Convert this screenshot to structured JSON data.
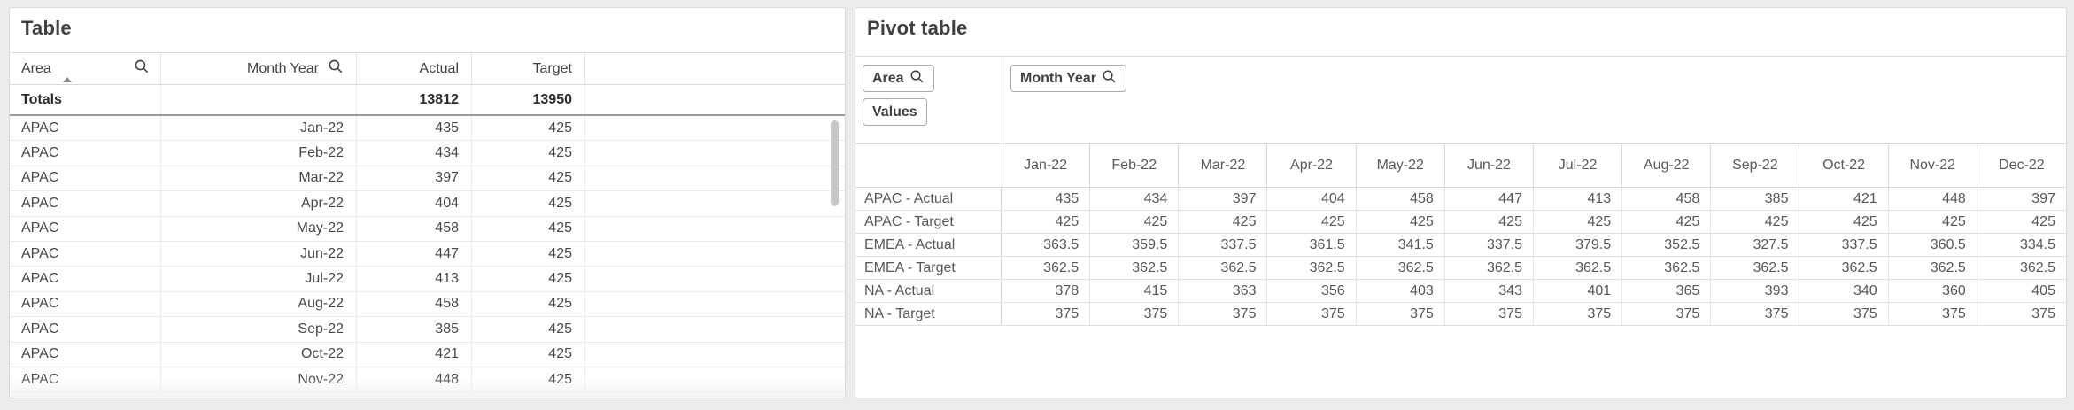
{
  "colors": {
    "page_bg": "#ececed",
    "panel_border": "#d8d8d8",
    "grid_border": "#e0e0e0",
    "totals_rule": "#9b9b9b",
    "scrollbar_thumb": "#c6c6c6",
    "text": "#4d4d4d"
  },
  "icons": {
    "search": "magnifier",
    "sort_ascending": "triangle-up"
  },
  "left_table": {
    "title": "Table",
    "columns": [
      "Area",
      "Month Year",
      "Actual",
      "Target"
    ],
    "totals_label": "Totals",
    "totals": {
      "actual": "13812",
      "target": "13950"
    },
    "rows": [
      {
        "area": "APAC",
        "month": "Jan-22",
        "actual": "435",
        "target": "425"
      },
      {
        "area": "APAC",
        "month": "Feb-22",
        "actual": "434",
        "target": "425"
      },
      {
        "area": "APAC",
        "month": "Mar-22",
        "actual": "397",
        "target": "425"
      },
      {
        "area": "APAC",
        "month": "Apr-22",
        "actual": "404",
        "target": "425"
      },
      {
        "area": "APAC",
        "month": "May-22",
        "actual": "458",
        "target": "425"
      },
      {
        "area": "APAC",
        "month": "Jun-22",
        "actual": "447",
        "target": "425"
      },
      {
        "area": "APAC",
        "month": "Jul-22",
        "actual": "413",
        "target": "425"
      },
      {
        "area": "APAC",
        "month": "Aug-22",
        "actual": "458",
        "target": "425"
      },
      {
        "area": "APAC",
        "month": "Sep-22",
        "actual": "385",
        "target": "425"
      },
      {
        "area": "APAC",
        "month": "Oct-22",
        "actual": "421",
        "target": "425"
      },
      {
        "area": "APAC",
        "month": "Nov-22",
        "actual": "448",
        "target": "425"
      }
    ]
  },
  "pivot": {
    "title": "Pivot table",
    "row_dimension_button": "Area",
    "values_button": "Values",
    "column_dimension_button": "Month Year",
    "columns": [
      "Jan-22",
      "Feb-22",
      "Mar-22",
      "Apr-22",
      "May-22",
      "Jun-22",
      "Jul-22",
      "Aug-22",
      "Sep-22",
      "Oct-22",
      "Nov-22",
      "Dec-22"
    ],
    "rows": [
      {
        "label": "APAC - Actual",
        "values": [
          "435",
          "434",
          "397",
          "404",
          "458",
          "447",
          "413",
          "458",
          "385",
          "421",
          "448",
          "397"
        ]
      },
      {
        "label": "APAC - Target",
        "values": [
          "425",
          "425",
          "425",
          "425",
          "425",
          "425",
          "425",
          "425",
          "425",
          "425",
          "425",
          "425"
        ]
      },
      {
        "label": "EMEA - Actual",
        "values": [
          "363.5",
          "359.5",
          "337.5",
          "361.5",
          "341.5",
          "337.5",
          "379.5",
          "352.5",
          "327.5",
          "337.5",
          "360.5",
          "334.5"
        ]
      },
      {
        "label": "EMEA - Target",
        "values": [
          "362.5",
          "362.5",
          "362.5",
          "362.5",
          "362.5",
          "362.5",
          "362.5",
          "362.5",
          "362.5",
          "362.5",
          "362.5",
          "362.5"
        ]
      },
      {
        "label": "NA - Actual",
        "values": [
          "378",
          "415",
          "363",
          "356",
          "403",
          "343",
          "401",
          "365",
          "393",
          "340",
          "360",
          "405"
        ]
      },
      {
        "label": "NA - Target",
        "values": [
          "375",
          "375",
          "375",
          "375",
          "375",
          "375",
          "375",
          "375",
          "375",
          "375",
          "375",
          "375"
        ]
      }
    ]
  }
}
